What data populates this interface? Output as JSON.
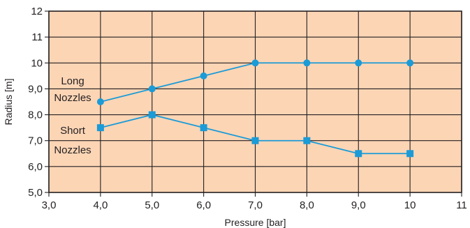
{
  "chart_data": {
    "type": "line",
    "xlabel": "Pressure [bar]",
    "ylabel": "Radius [m]",
    "xlim": [
      3,
      11
    ],
    "ylim": [
      5,
      12
    ],
    "x_ticks": [
      "3,0",
      "4,0",
      "5,0",
      "6,0",
      "7,0",
      "8,0",
      "9,0",
      "10",
      "11"
    ],
    "y_ticks": [
      "5,0",
      "6,0",
      "7,0",
      "8,0",
      "9,0",
      "10",
      "11",
      "12"
    ],
    "grid": true,
    "plot_background": "#fcd5b5",
    "series": [
      {
        "name": "Long Nozzles",
        "label_lines": [
          "Long",
          "Nozzles"
        ],
        "marker": "circle",
        "color": "#1b9bd7",
        "x": [
          4,
          5,
          6,
          7,
          8,
          9,
          10
        ],
        "y": [
          8.5,
          9.0,
          9.5,
          10.0,
          10.0,
          10.0,
          10.0
        ]
      },
      {
        "name": "Short Nozzles",
        "label_lines": [
          "Short",
          "Nozzles"
        ],
        "marker": "square",
        "color": "#1b9bd7",
        "x": [
          4,
          5,
          6,
          7,
          8,
          9,
          10
        ],
        "y": [
          7.5,
          8.0,
          7.5,
          7.0,
          7.0,
          6.5,
          6.5
        ]
      }
    ]
  }
}
